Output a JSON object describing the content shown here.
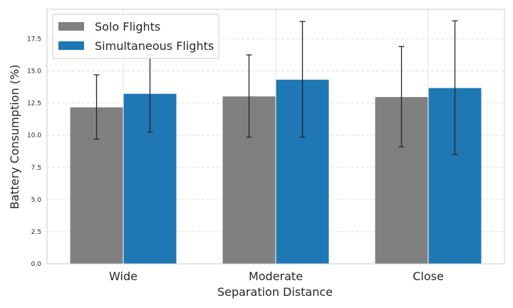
{
  "chart_data": {
    "type": "bar",
    "title": "",
    "xlabel": "Separation Distance",
    "ylabel": "Battery Consumption (%)",
    "categories": [
      "Wide",
      "Moderate",
      "Close"
    ],
    "ylim": [
      0,
      19.8
    ],
    "yticks": [
      "0.0",
      "2.5",
      "5.0",
      "7.5",
      "10.0",
      "12.5",
      "15.0",
      "17.5"
    ],
    "grid": true,
    "legend_position": "top-left",
    "series": [
      {
        "name": "Solo Flights",
        "color": "#808080",
        "values": [
          12.2,
          13.05,
          13.0
        ],
        "errors": [
          2.5,
          3.2,
          3.9
        ]
      },
      {
        "name": "Simultaneous Flights",
        "color": "#1f77b4",
        "values": [
          13.25,
          14.35,
          13.7
        ],
        "errors": [
          3.0,
          4.5,
          5.2
        ]
      }
    ]
  }
}
